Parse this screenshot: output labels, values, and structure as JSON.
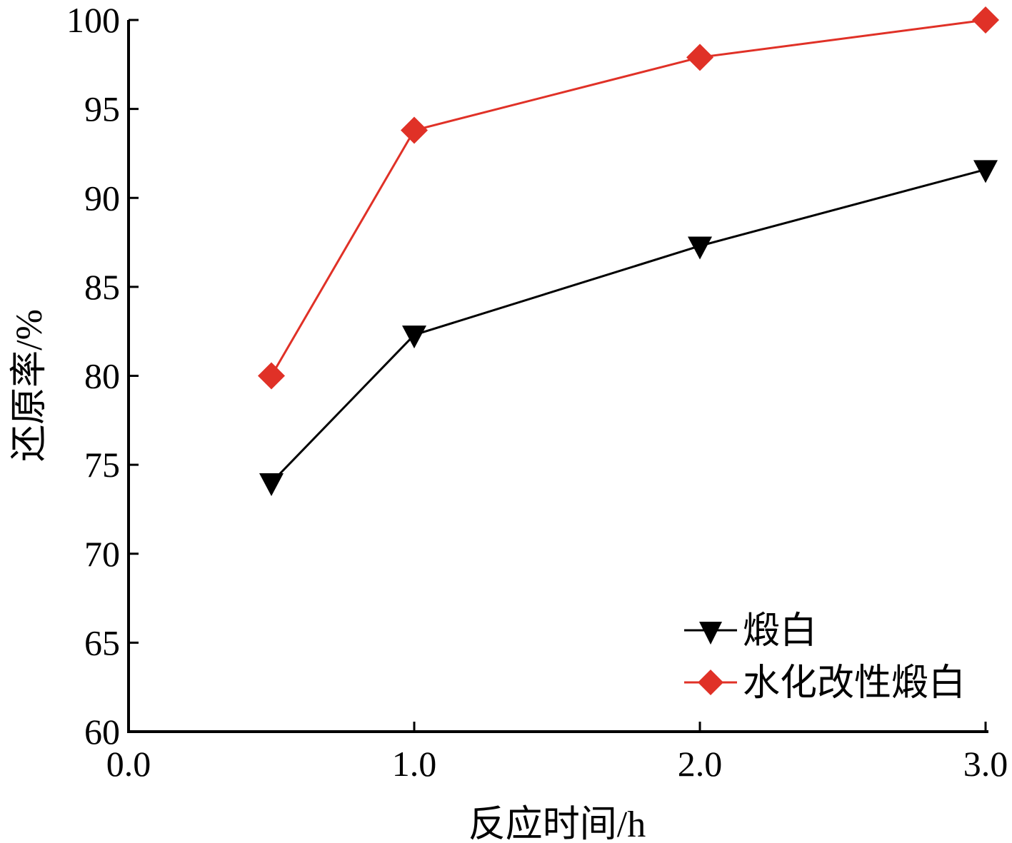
{
  "chart_data": {
    "type": "line",
    "xlabel": "反应时间/h",
    "ylabel": "还原率/%",
    "xlim": [
      0.0,
      3.0
    ],
    "ylim": [
      60,
      100
    ],
    "x_ticks": [
      "0.0",
      "1.0",
      "2.0",
      "3.0"
    ],
    "y_ticks": [
      "60",
      "65",
      "70",
      "75",
      "80",
      "85",
      "90",
      "95",
      "100"
    ],
    "grid": false,
    "legend_position": "bottom-right",
    "series": [
      {
        "name": "煅白",
        "color": "#000000",
        "marker": "triangle-down",
        "x": [
          0.5,
          1.0,
          2.0,
          3.0
        ],
        "y": [
          74.0,
          82.3,
          87.3,
          91.6
        ]
      },
      {
        "name": "水化改性煅白",
        "color": "#e03127",
        "marker": "diamond",
        "x": [
          0.5,
          1.0,
          2.0,
          3.0
        ],
        "y": [
          80.0,
          93.8,
          97.9,
          100.0
        ]
      }
    ]
  }
}
